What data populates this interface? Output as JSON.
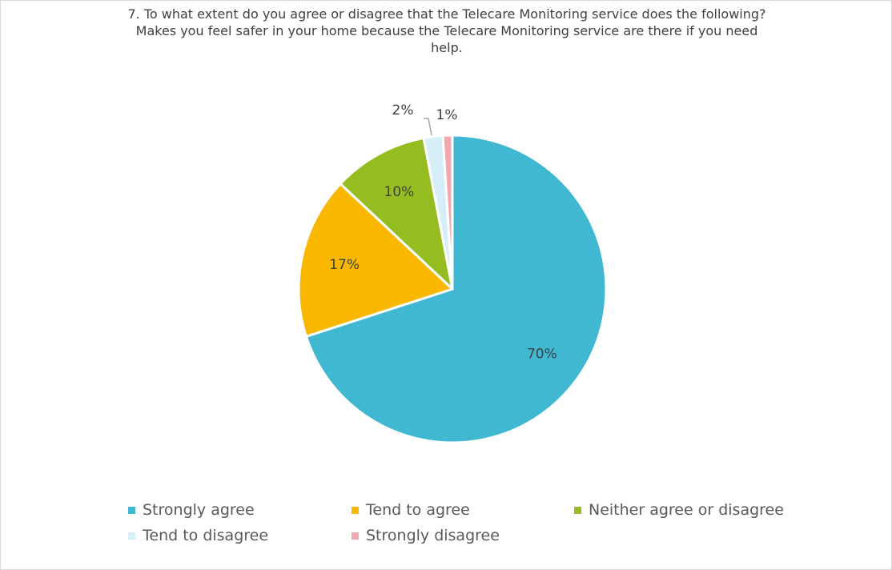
{
  "chart_data": {
    "type": "pie",
    "title_lines": [
      "7. To what extent do you agree or disagree that the Telecare Monitoring service does the following?",
      "Makes you feel safer in your home because the Telecare Monitoring service are there if you need",
      "help."
    ],
    "slices": [
      {
        "name": "Strongly agree",
        "value": 70,
        "label": "70%",
        "color": "#41b8d2"
      },
      {
        "name": "Tend to agree",
        "value": 17,
        "label": "17%",
        "color": "#f9b700"
      },
      {
        "name": "Neither agree or disagree",
        "value": 10,
        "label": "10%",
        "color": "#95bd21"
      },
      {
        "name": "Tend to disagree",
        "value": 2,
        "label": "2%",
        "color": "#d5eef8"
      },
      {
        "name": "Strongly disagree",
        "value": 1,
        "label": "1%",
        "color": "#f0a9ae"
      }
    ],
    "legend_position": "bottom"
  }
}
